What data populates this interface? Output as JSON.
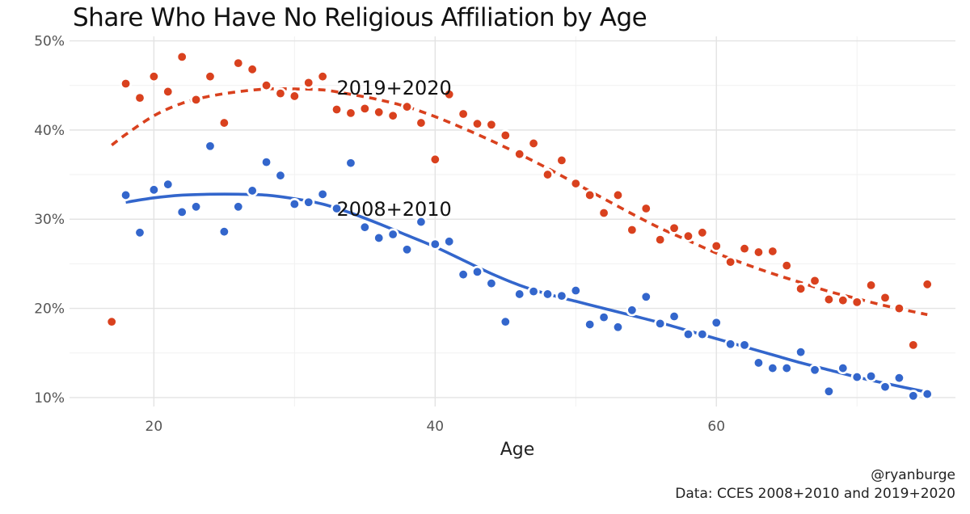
{
  "chart_data": {
    "type": "scatter",
    "title": "Share Who Have No Religious Affiliation by Age",
    "xlabel": "Age",
    "ylabel": "",
    "xlim": [
      14,
      77
    ],
    "ylim": [
      0.09,
      0.505
    ],
    "x_ticks": [
      20,
      40,
      60
    ],
    "x_tick_labels": [
      "20",
      "40",
      "60"
    ],
    "y_ticks": [
      0.1,
      0.2,
      0.3,
      0.4,
      0.5
    ],
    "y_tick_labels": [
      "10%",
      "20%",
      "30%",
      "40%",
      "50%"
    ],
    "grid": true,
    "legend": "none",
    "series": [
      {
        "name": "2019+2020",
        "color": "#d9411e",
        "line_style": "dashed",
        "points": [
          [
            17,
            0.185
          ],
          [
            18,
            0.452
          ],
          [
            19,
            0.436
          ],
          [
            20,
            0.46
          ],
          [
            21,
            0.443
          ],
          [
            22,
            0.482
          ],
          [
            23,
            0.434
          ],
          [
            24,
            0.46
          ],
          [
            25,
            0.408
          ],
          [
            26,
            0.475
          ],
          [
            27,
            0.468
          ],
          [
            28,
            0.45
          ],
          [
            29,
            0.441
          ],
          [
            30,
            0.438
          ],
          [
            31,
            0.453
          ],
          [
            32,
            0.46
          ],
          [
            33,
            0.423
          ],
          [
            34,
            0.419
          ],
          [
            35,
            0.424
          ],
          [
            36,
            0.42
          ],
          [
            37,
            0.416
          ],
          [
            38,
            0.426
          ],
          [
            39,
            0.408
          ],
          [
            40,
            0.367
          ],
          [
            41,
            0.44
          ],
          [
            42,
            0.418
          ],
          [
            43,
            0.407
          ],
          [
            44,
            0.406
          ],
          [
            45,
            0.394
          ],
          [
            46,
            0.373
          ],
          [
            47,
            0.385
          ],
          [
            48,
            0.35
          ],
          [
            49,
            0.366
          ],
          [
            50,
            0.34
          ],
          [
            51,
            0.327
          ],
          [
            52,
            0.307
          ],
          [
            53,
            0.327
          ],
          [
            54,
            0.288
          ],
          [
            55,
            0.312
          ],
          [
            56,
            0.277
          ],
          [
            57,
            0.29
          ],
          [
            58,
            0.281
          ],
          [
            59,
            0.285
          ],
          [
            60,
            0.27
          ],
          [
            61,
            0.252
          ],
          [
            62,
            0.267
          ],
          [
            63,
            0.263
          ],
          [
            64,
            0.264
          ],
          [
            65,
            0.248
          ],
          [
            66,
            0.222
          ],
          [
            67,
            0.231
          ],
          [
            68,
            0.21
          ],
          [
            69,
            0.209
          ],
          [
            70,
            0.207
          ],
          [
            71,
            0.226
          ],
          [
            72,
            0.212
          ],
          [
            73,
            0.2
          ],
          [
            74,
            0.159
          ],
          [
            75,
            0.227
          ]
        ],
        "trend": [
          [
            17,
            0.383
          ],
          [
            18,
            0.395
          ],
          [
            20,
            0.416
          ],
          [
            22,
            0.43
          ],
          [
            24,
            0.438
          ],
          [
            26,
            0.443
          ],
          [
            28,
            0.446
          ],
          [
            30,
            0.446
          ],
          [
            32,
            0.445
          ],
          [
            34,
            0.44
          ],
          [
            36,
            0.434
          ],
          [
            38,
            0.426
          ],
          [
            40,
            0.415
          ],
          [
            42,
            0.402
          ],
          [
            44,
            0.388
          ],
          [
            46,
            0.373
          ],
          [
            48,
            0.357
          ],
          [
            50,
            0.34
          ],
          [
            52,
            0.323
          ],
          [
            54,
            0.306
          ],
          [
            56,
            0.29
          ],
          [
            58,
            0.276
          ],
          [
            60,
            0.262
          ],
          [
            62,
            0.25
          ],
          [
            64,
            0.239
          ],
          [
            66,
            0.229
          ],
          [
            68,
            0.219
          ],
          [
            70,
            0.211
          ],
          [
            72,
            0.203
          ],
          [
            75,
            0.193
          ]
        ],
        "label": "2019+2020",
        "label_at": [
          33,
          0.447
        ]
      },
      {
        "name": "2008+2010",
        "color": "#3366cc",
        "line_style": "solid",
        "points": [
          [
            18,
            0.327
          ],
          [
            19,
            0.285
          ],
          [
            20,
            0.333
          ],
          [
            21,
            0.339
          ],
          [
            22,
            0.308
          ],
          [
            23,
            0.314
          ],
          [
            24,
            0.382
          ],
          [
            25,
            0.286
          ],
          [
            26,
            0.314
          ],
          [
            27,
            0.332
          ],
          [
            28,
            0.364
          ],
          [
            29,
            0.349
          ],
          [
            30,
            0.317
          ],
          [
            31,
            0.319
          ],
          [
            32,
            0.328
          ],
          [
            33,
            0.312
          ],
          [
            34,
            0.363
          ],
          [
            35,
            0.291
          ],
          [
            36,
            0.279
          ],
          [
            37,
            0.283
          ],
          [
            38,
            0.266
          ],
          [
            39,
            0.297
          ],
          [
            40,
            0.272
          ],
          [
            41,
            0.275
          ],
          [
            42,
            0.238
          ],
          [
            43,
            0.241
          ],
          [
            44,
            0.228
          ],
          [
            45,
            0.185
          ],
          [
            46,
            0.216
          ],
          [
            47,
            0.219
          ],
          [
            48,
            0.216
          ],
          [
            49,
            0.214
          ],
          [
            50,
            0.22
          ],
          [
            51,
            0.182
          ],
          [
            52,
            0.19
          ],
          [
            53,
            0.179
          ],
          [
            54,
            0.198
          ],
          [
            55,
            0.213
          ],
          [
            56,
            0.183
          ],
          [
            57,
            0.191
          ],
          [
            58,
            0.171
          ],
          [
            59,
            0.171
          ],
          [
            60,
            0.184
          ],
          [
            61,
            0.16
          ],
          [
            62,
            0.159
          ],
          [
            63,
            0.139
          ],
          [
            64,
            0.133
          ],
          [
            65,
            0.133
          ],
          [
            66,
            0.151
          ],
          [
            67,
            0.131
          ],
          [
            68,
            0.107
          ],
          [
            69,
            0.133
          ],
          [
            70,
            0.123
          ],
          [
            71,
            0.124
          ],
          [
            72,
            0.112
          ],
          [
            73,
            0.122
          ],
          [
            74,
            0.102
          ],
          [
            75,
            0.104
          ]
        ],
        "trend": [
          [
            18,
            0.319
          ],
          [
            20,
            0.324
          ],
          [
            22,
            0.327
          ],
          [
            24,
            0.328
          ],
          [
            26,
            0.328
          ],
          [
            28,
            0.327
          ],
          [
            30,
            0.323
          ],
          [
            32,
            0.317
          ],
          [
            34,
            0.307
          ],
          [
            36,
            0.295
          ],
          [
            38,
            0.282
          ],
          [
            40,
            0.269
          ],
          [
            42,
            0.254
          ],
          [
            44,
            0.239
          ],
          [
            46,
            0.226
          ],
          [
            48,
            0.216
          ],
          [
            50,
            0.208
          ],
          [
            52,
            0.2
          ],
          [
            54,
            0.192
          ],
          [
            56,
            0.184
          ],
          [
            58,
            0.175
          ],
          [
            60,
            0.166
          ],
          [
            62,
            0.157
          ],
          [
            64,
            0.148
          ],
          [
            66,
            0.139
          ],
          [
            68,
            0.131
          ],
          [
            70,
            0.123
          ],
          [
            72,
            0.116
          ],
          [
            75,
            0.106
          ]
        ],
        "label": "2008+2010",
        "label_at": [
          33,
          0.311
        ]
      }
    ]
  },
  "captions": {
    "handle": "@ryanburge",
    "source": "Data: CCES 2008+2010 and 2019+2020"
  }
}
